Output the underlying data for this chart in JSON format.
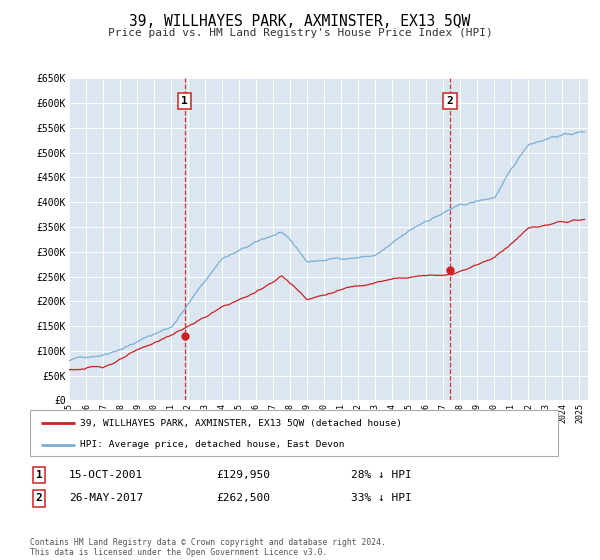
{
  "title": "39, WILLHAYES PARK, AXMINSTER, EX13 5QW",
  "subtitle": "Price paid vs. HM Land Registry's House Price Index (HPI)",
  "background_color": "#ffffff",
  "plot_bg_color": "#dce6f1",
  "grid_color": "#ffffff",
  "ylim": [
    0,
    650000
  ],
  "xlim_start": 1995.0,
  "xlim_end": 2025.5,
  "yticks": [
    0,
    50000,
    100000,
    150000,
    200000,
    250000,
    300000,
    350000,
    400000,
    450000,
    500000,
    550000,
    600000,
    650000
  ],
  "ytick_labels": [
    "£0",
    "£50K",
    "£100K",
    "£150K",
    "£200K",
    "£250K",
    "£300K",
    "£350K",
    "£400K",
    "£450K",
    "£500K",
    "£550K",
    "£600K",
    "£650K"
  ],
  "xticks": [
    1995,
    1996,
    1997,
    1998,
    1999,
    2000,
    2001,
    2002,
    2003,
    2004,
    2005,
    2006,
    2007,
    2008,
    2009,
    2010,
    2011,
    2012,
    2013,
    2014,
    2015,
    2016,
    2017,
    2018,
    2019,
    2020,
    2021,
    2022,
    2023,
    2024,
    2025
  ],
  "hpi_color": "#7bafd4",
  "price_color": "#cc2222",
  "marker1_x": 2001.79,
  "marker1_y": 129950,
  "marker2_x": 2017.4,
  "marker2_y": 262500,
  "vline1_x": 2001.79,
  "vline2_x": 2017.4,
  "vline_color": "#cc2222",
  "legend_text1": "39, WILLHAYES PARK, AXMINSTER, EX13 5QW (detached house)",
  "legend_text2": "HPI: Average price, detached house, East Devon",
  "annotation1_label": "1",
  "annotation2_label": "2",
  "ann1_date": "15-OCT-2001",
  "ann1_price": "£129,950",
  "ann1_hpi": "28% ↓ HPI",
  "ann2_date": "26-MAY-2017",
  "ann2_price": "£262,500",
  "ann2_hpi": "33% ↓ HPI",
  "footer": "Contains HM Land Registry data © Crown copyright and database right 2024.\nThis data is licensed under the Open Government Licence v3.0."
}
